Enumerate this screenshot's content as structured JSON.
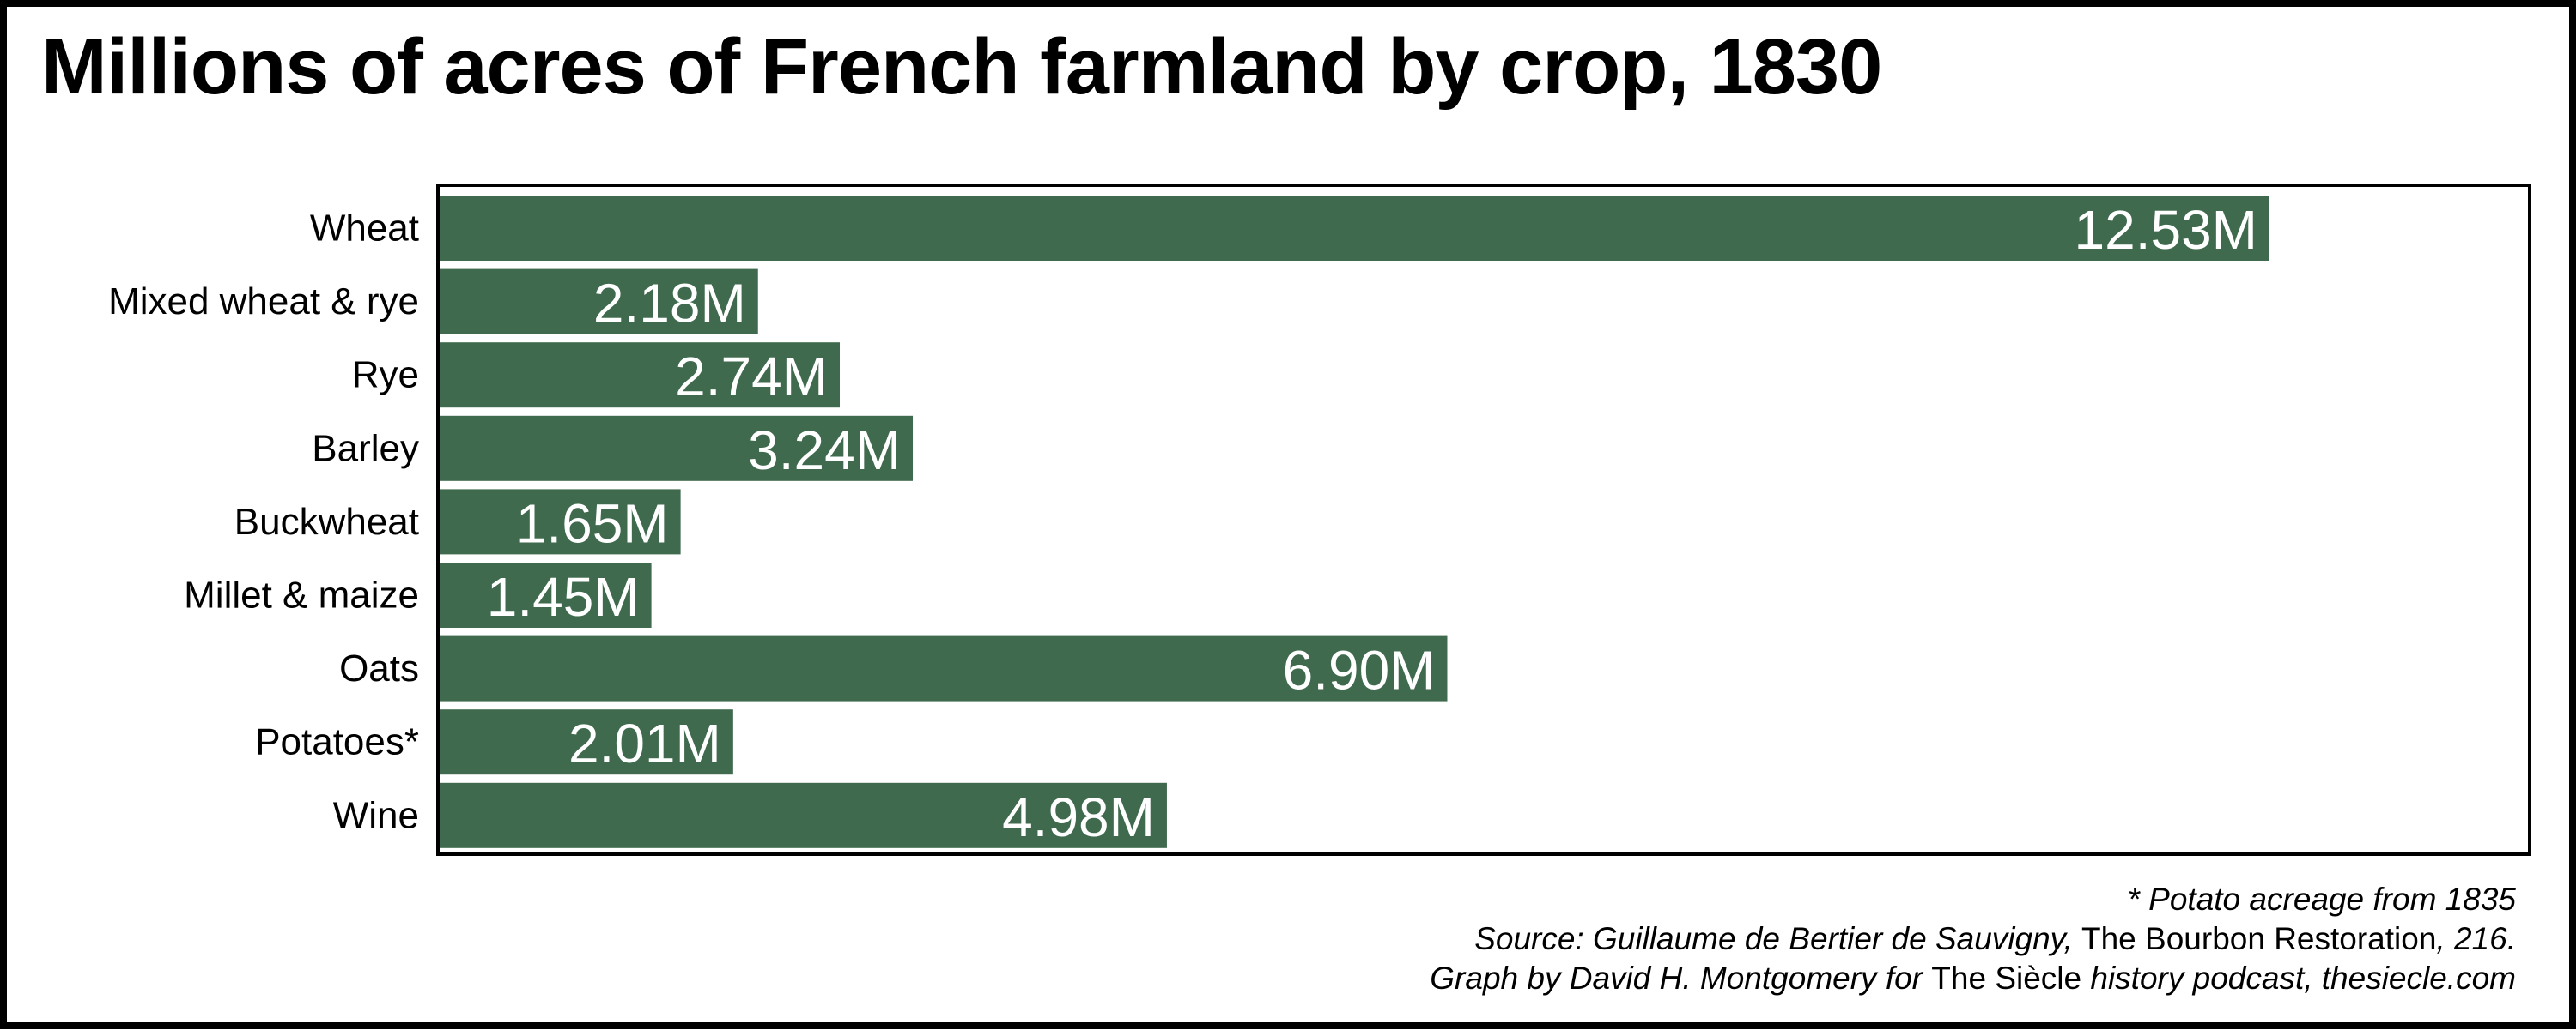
{
  "chart_data": {
    "type": "bar",
    "orientation": "horizontal",
    "title": "Millions of acres of French farmland by crop, 1830",
    "categories": [
      "Wheat",
      "Mixed wheat & rye",
      "Rye",
      "Barley",
      "Buckwheat",
      "Millet & maize",
      "Oats",
      "Potatoes*",
      "Wine"
    ],
    "values": [
      12.53,
      2.18,
      2.74,
      3.24,
      1.65,
      1.45,
      6.9,
      2.01,
      4.98
    ],
    "data_labels": [
      "12.53M",
      "2.18M",
      "2.74M",
      "3.24M",
      "1.65M",
      "1.45M",
      "6.90M",
      "2.01M",
      "4.98M"
    ],
    "xlim": [
      0,
      14.3
    ],
    "grid": false,
    "legend": "none",
    "bar_color": "#3f6a4d",
    "label_color": "#ffffff"
  },
  "notes": {
    "footnote": "* Potato acreage from 1835",
    "source_prefix": "Source: Guillaume de Bertier de Sauvigny, ",
    "source_book": "The Bourbon Restoration",
    "source_suffix": ", 216.",
    "credit_prefix": "Graph by David H. Montgomery for ",
    "credit_podcast": "The Siècle",
    "credit_suffix": " history podcast, thesiecle.com"
  }
}
